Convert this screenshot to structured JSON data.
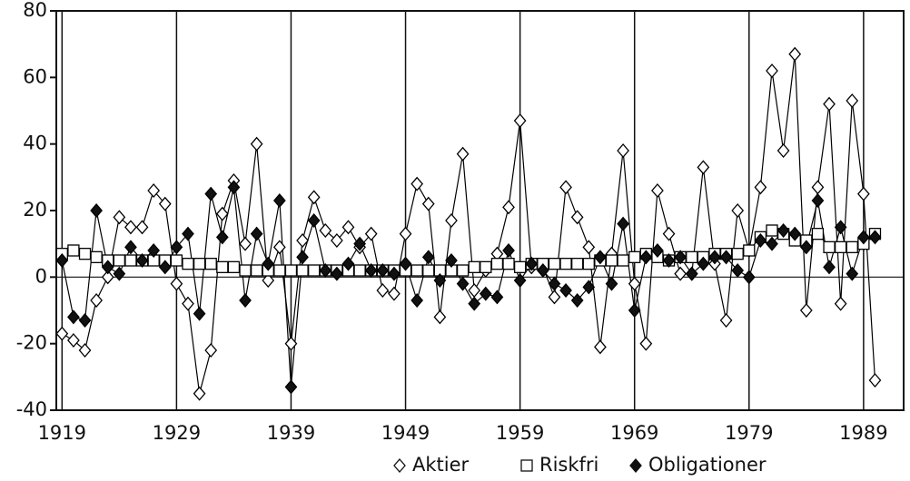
{
  "chart_data": {
    "type": "line",
    "x": [
      1919,
      1920,
      1921,
      1922,
      1923,
      1924,
      1925,
      1926,
      1927,
      1928,
      1929,
      1930,
      1931,
      1932,
      1933,
      1934,
      1935,
      1936,
      1937,
      1938,
      1939,
      1940,
      1941,
      1942,
      1943,
      1944,
      1945,
      1946,
      1947,
      1948,
      1949,
      1950,
      1951,
      1952,
      1953,
      1954,
      1955,
      1956,
      1957,
      1958,
      1959,
      1960,
      1961,
      1962,
      1963,
      1964,
      1965,
      1966,
      1967,
      1968,
      1969,
      1970,
      1971,
      1972,
      1973,
      1974,
      1975,
      1976,
      1977,
      1978,
      1979,
      1980,
      1981,
      1982,
      1983,
      1984,
      1985,
      1986,
      1987,
      1988,
      1989,
      1990
    ],
    "series": [
      {
        "name": "Aktier",
        "color": "#000000",
        "marker": "diamond-open",
        "values": [
          -17,
          -19,
          -22,
          -7,
          0,
          18,
          15,
          15,
          26,
          22,
          -2,
          -8,
          -35,
          -22,
          19,
          29,
          10,
          40,
          -1,
          9,
          -20,
          11,
          24,
          14,
          11,
          15,
          9,
          13,
          -4,
          -5,
          13,
          28,
          22,
          -12,
          17,
          37,
          -4,
          2,
          7,
          21,
          47,
          3,
          3,
          -6,
          27,
          18,
          9,
          -21,
          7,
          38,
          -2,
          -20,
          26,
          13,
          1,
          1,
          33,
          4,
          -13,
          20,
          8,
          27,
          62,
          38,
          67,
          -10,
          27,
          52,
          -8,
          53,
          25,
          -31
        ]
      },
      {
        "name": "Riskfri",
        "color": "#000000",
        "marker": "square-open",
        "values": [
          7,
          8,
          7,
          6,
          5,
          5,
          5,
          5,
          5,
          5,
          5,
          4,
          4,
          4,
          3,
          3,
          2,
          2,
          2,
          2,
          2,
          2,
          2,
          2,
          2,
          2,
          2,
          2,
          2,
          2,
          2,
          2,
          2,
          2,
          2,
          2,
          3,
          3,
          4,
          4,
          3,
          4,
          4,
          4,
          4,
          4,
          4,
          5,
          5,
          5,
          6,
          7,
          6,
          5,
          6,
          6,
          6,
          7,
          7,
          7,
          8,
          12,
          14,
          13,
          11,
          11,
          13,
          9,
          9,
          9,
          10,
          13
        ]
      },
      {
        "name": "Obligationer",
        "color": "#000000",
        "marker": "diamond-filled",
        "values": [
          5,
          -12,
          -13,
          20,
          3,
          1,
          9,
          5,
          8,
          3,
          9,
          13,
          -11,
          25,
          12,
          27,
          -7,
          13,
          4,
          23,
          -33,
          6,
          17,
          2,
          1,
          4,
          10,
          2,
          2,
          1,
          4,
          -7,
          6,
          -1,
          5,
          -2,
          -8,
          -5,
          -6,
          8,
          -1,
          4,
          2,
          -2,
          -4,
          -7,
          -3,
          6,
          -2,
          16,
          -10,
          6,
          8,
          5,
          6,
          1,
          4,
          6,
          6,
          2,
          0,
          11,
          10,
          14,
          13,
          9,
          23,
          3,
          15,
          1,
          12,
          12
        ]
      }
    ],
    "xlim": [
      1918.5,
      1992.5
    ],
    "xticks": [
      1919,
      1929,
      1939,
      1949,
      1959,
      1969,
      1979,
      1989
    ],
    "ylim": [
      -40,
      80
    ],
    "yticks": [
      -40,
      -20,
      0,
      20,
      40,
      60,
      80
    ],
    "grid": true,
    "legend": "bottom"
  }
}
